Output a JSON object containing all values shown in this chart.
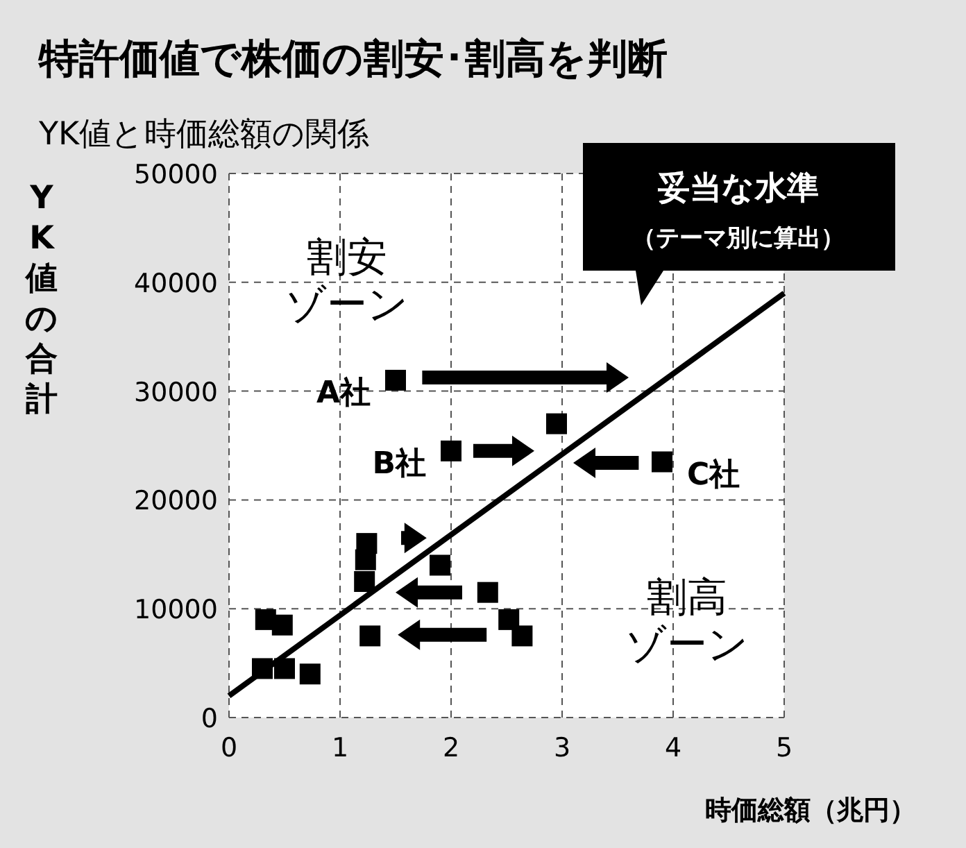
{
  "chart_data": {
    "type": "scatter",
    "title": "特許価値で株価の割安･割高を判断",
    "subtitle": "YK値と時価総額の関係",
    "xlabel": "時価総額（兆円）",
    "ylabel": "YK値の合計",
    "xlim": [
      0,
      5
    ],
    "xticks": [
      0,
      1,
      2,
      3,
      4,
      5
    ],
    "ylim": [
      0,
      50000
    ],
    "yticks": [
      0,
      10000,
      20000,
      30000,
      40000,
      50000
    ],
    "grid": true,
    "series": [
      {
        "color": "#000000",
        "marker": "square",
        "x": [
          1.5,
          2.95,
          2,
          3.9,
          1.24,
          1.23,
          1.22,
          1.9,
          2.33,
          2.52,
          2.64,
          1.27,
          0.48,
          0.33,
          0.3,
          0.5,
          0.73
        ],
        "values": [
          31000,
          27000,
          24500,
          23500,
          16000,
          14500,
          12500,
          14000,
          11500,
          9000,
          7500,
          7500,
          8500,
          9000,
          4500,
          4500,
          4000
        ]
      },
      {
        "type": "line",
        "color": "#000000",
        "x": [
          0,
          5
        ],
        "values": [
          2000,
          39000
        ]
      }
    ],
    "annotations": [
      {
        "text": "A社",
        "x": 1.5,
        "y": 31000
      },
      {
        "text": "B社",
        "x": 2,
        "y": 24500
      },
      {
        "text": "C社",
        "x": 3.9,
        "y": 23500
      },
      "割安",
      "ゾーン",
      "割高",
      "ゾーン",
      "妥当な水準",
      "（テーマ別に算出）"
    ]
  }
}
